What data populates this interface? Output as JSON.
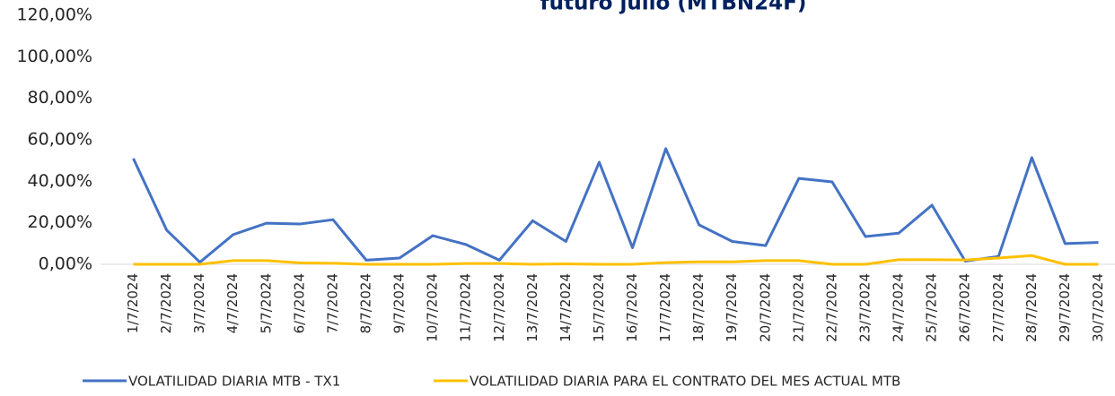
{
  "chart_data": {
    "type": "line",
    "title": "futuro julio (MTBN24F)",
    "categories": [
      "1/7/2024",
      "2/7/2024",
      "3/7/2024",
      "4/7/2024",
      "5/7/2024",
      "6/7/2024",
      "7/7/2024",
      "8/7/2024",
      "9/7/2024",
      "10/7/2024",
      "11/7/2024",
      "12/7/2024",
      "13/7/2024",
      "14/7/2024",
      "15/7/2024",
      "16/7/2024",
      "17/7/2024",
      "18/7/2024",
      "19/7/2024",
      "20/7/2024",
      "21/7/2024",
      "22/7/2024",
      "23/7/2024",
      "24/7/2024",
      "25/7/2024",
      "26/7/2024",
      "27/7/2024",
      "28/7/2024",
      "29/7/2024",
      "30/7/2024"
    ],
    "series": [
      {
        "name": "VOLATILIDAD DIARIA MTB - TX1",
        "color": "#4472c4",
        "values": [
          51,
          16.5,
          1,
          14.3,
          19.8,
          19.4,
          21.5,
          2,
          3,
          13.8,
          9.5,
          2,
          21,
          11,
          49.2,
          8,
          55.7,
          19,
          11,
          9,
          41.4,
          39.7,
          13.4,
          15,
          28.5,
          1.5,
          3.8,
          51.4,
          10,
          10.5
        ]
      },
      {
        "name": "VOLATILIDAD DIARIA PARA EL CONTRATO DEL MES ACTUAL MTB",
        "color": "#ffc000",
        "values": [
          0,
          0,
          0,
          1.8,
          1.8,
          0.7,
          0.5,
          0,
          0,
          0,
          0.4,
          0.4,
          0,
          0.2,
          0,
          0,
          0.8,
          1.2,
          1.2,
          1.8,
          1.8,
          0,
          0,
          2.2,
          2.2,
          2.1,
          3,
          4.2,
          0,
          0
        ]
      }
    ],
    "ylim": [
      0,
      120
    ],
    "yticks": [
      {
        "value": 0,
        "label": "0,00%"
      },
      {
        "value": 20,
        "label": "20,00%"
      },
      {
        "value": 40,
        "label": "40,00%"
      },
      {
        "value": 60,
        "label": "60,00%"
      },
      {
        "value": 80,
        "label": "80,00%"
      },
      {
        "value": 100,
        "label": "100,00%"
      },
      {
        "value": 120,
        "label": "120,00%"
      }
    ],
    "legend": "bottom"
  }
}
